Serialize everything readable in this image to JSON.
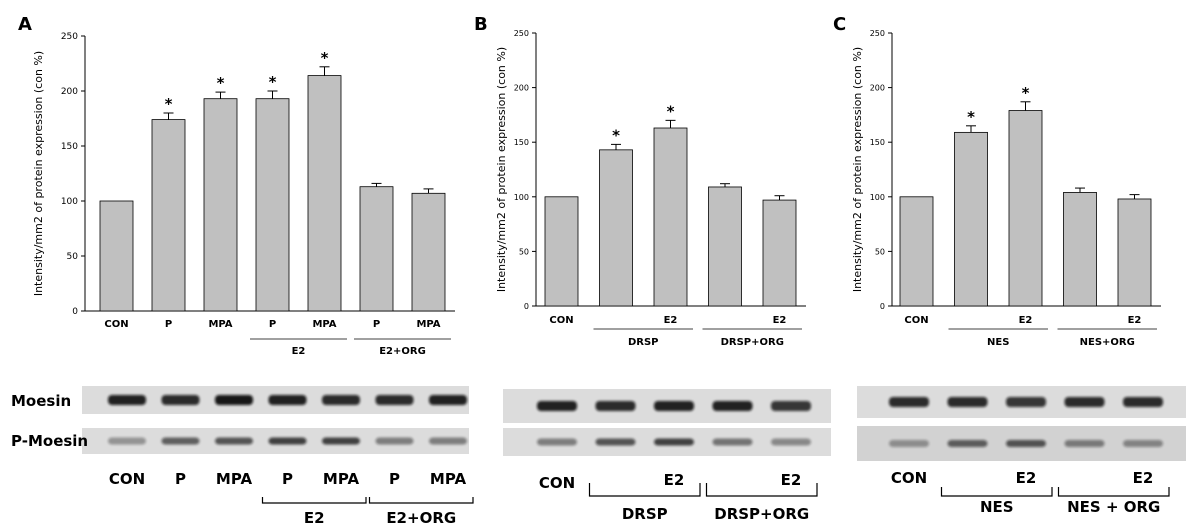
{
  "chart_data": [
    {
      "panel": "A",
      "type": "bar",
      "ylabel": "Intensity/mm2 of protein expression (con %)",
      "ylim": [
        0,
        250
      ],
      "yticks": [
        0,
        50,
        100,
        150,
        200,
        250
      ],
      "categories": [
        "CON",
        "P",
        "MPA",
        "P",
        "MPA",
        "P",
        "MPA"
      ],
      "values": [
        100,
        174,
        193,
        193,
        214,
        113,
        107
      ],
      "errors": [
        0,
        6,
        6,
        7,
        8,
        3,
        4
      ],
      "significant": [
        false,
        true,
        true,
        true,
        true,
        false,
        false
      ],
      "groups": [
        {
          "label": "E2",
          "from": 3,
          "to": 4
        },
        {
          "label": "E2+ORG",
          "from": 5,
          "to": 6
        }
      ],
      "bar_color": "#c0c0c0"
    },
    {
      "panel": "B",
      "type": "bar",
      "ylabel": "Intensity/mm2 of protein expression (con %)",
      "ylim": [
        0,
        250
      ],
      "yticks": [
        0,
        50,
        100,
        150,
        200,
        250
      ],
      "categories": [
        "CON",
        "",
        "E2",
        "",
        "E2"
      ],
      "values": [
        100,
        143,
        163,
        109,
        97
      ],
      "errors": [
        0,
        5,
        7,
        3,
        4
      ],
      "significant": [
        false,
        true,
        true,
        false,
        false
      ],
      "groups": [
        {
          "label": "DRSP",
          "from": 1,
          "to": 2
        },
        {
          "label": "DRSP+ORG",
          "from": 3,
          "to": 4
        }
      ],
      "bar_color": "#c0c0c0"
    },
    {
      "panel": "C",
      "type": "bar",
      "ylabel": "Intensity/mm2 of protein expression (con %)",
      "ylim": [
        0,
        250
      ],
      "yticks": [
        0,
        50,
        100,
        150,
        200,
        250
      ],
      "categories": [
        "CON",
        "",
        "E2",
        "",
        "E2"
      ],
      "values": [
        100,
        159,
        179,
        104,
        98
      ],
      "errors": [
        0,
        6,
        8,
        4,
        4
      ],
      "significant": [
        false,
        true,
        true,
        false,
        false
      ],
      "groups": [
        {
          "label": "NES",
          "from": 1,
          "to": 2
        },
        {
          "label": "NES+ORG",
          "from": 3,
          "to": 4
        }
      ],
      "bar_color": "#c0c0c0"
    }
  ],
  "blots": [
    {
      "panel": "A",
      "row_labels": [
        "Moesin",
        "P-Moesin"
      ],
      "lanes": [
        "CON",
        "P",
        "MPA",
        "P",
        "MPA",
        "P",
        "MPA"
      ],
      "groups": [
        {
          "label": "E2",
          "from": 3,
          "to": 4
        },
        {
          "label": "E2+ORG",
          "from": 5,
          "to": 6
        }
      ],
      "moesin_intensity": [
        0.9,
        0.85,
        0.95,
        0.9,
        0.85,
        0.85,
        0.9
      ],
      "pmoesin_intensity": [
        0.35,
        0.6,
        0.65,
        0.75,
        0.75,
        0.45,
        0.45
      ]
    },
    {
      "panel": "B",
      "lanes": [
        "CON",
        "",
        "E2",
        "",
        "E2"
      ],
      "groups": [
        {
          "label": "DRSP",
          "from": 1,
          "to": 2
        },
        {
          "label": "DRSP+ORG",
          "from": 3,
          "to": 4
        }
      ],
      "moesin_intensity": [
        0.9,
        0.85,
        0.9,
        0.9,
        0.8
      ],
      "pmoesin_intensity": [
        0.45,
        0.65,
        0.75,
        0.5,
        0.4
      ]
    },
    {
      "panel": "C",
      "lanes": [
        "CON",
        "",
        "E2",
        "",
        "E2"
      ],
      "groups": [
        {
          "label": "NES",
          "from": 1,
          "to": 2
        },
        {
          "label": "NES + ORG",
          "from": 3,
          "to": 4
        }
      ],
      "moesin_intensity": [
        0.85,
        0.85,
        0.8,
        0.85,
        0.85
      ],
      "pmoesin_intensity": [
        0.35,
        0.6,
        0.65,
        0.45,
        0.4
      ]
    }
  ],
  "significance_marker": "*"
}
